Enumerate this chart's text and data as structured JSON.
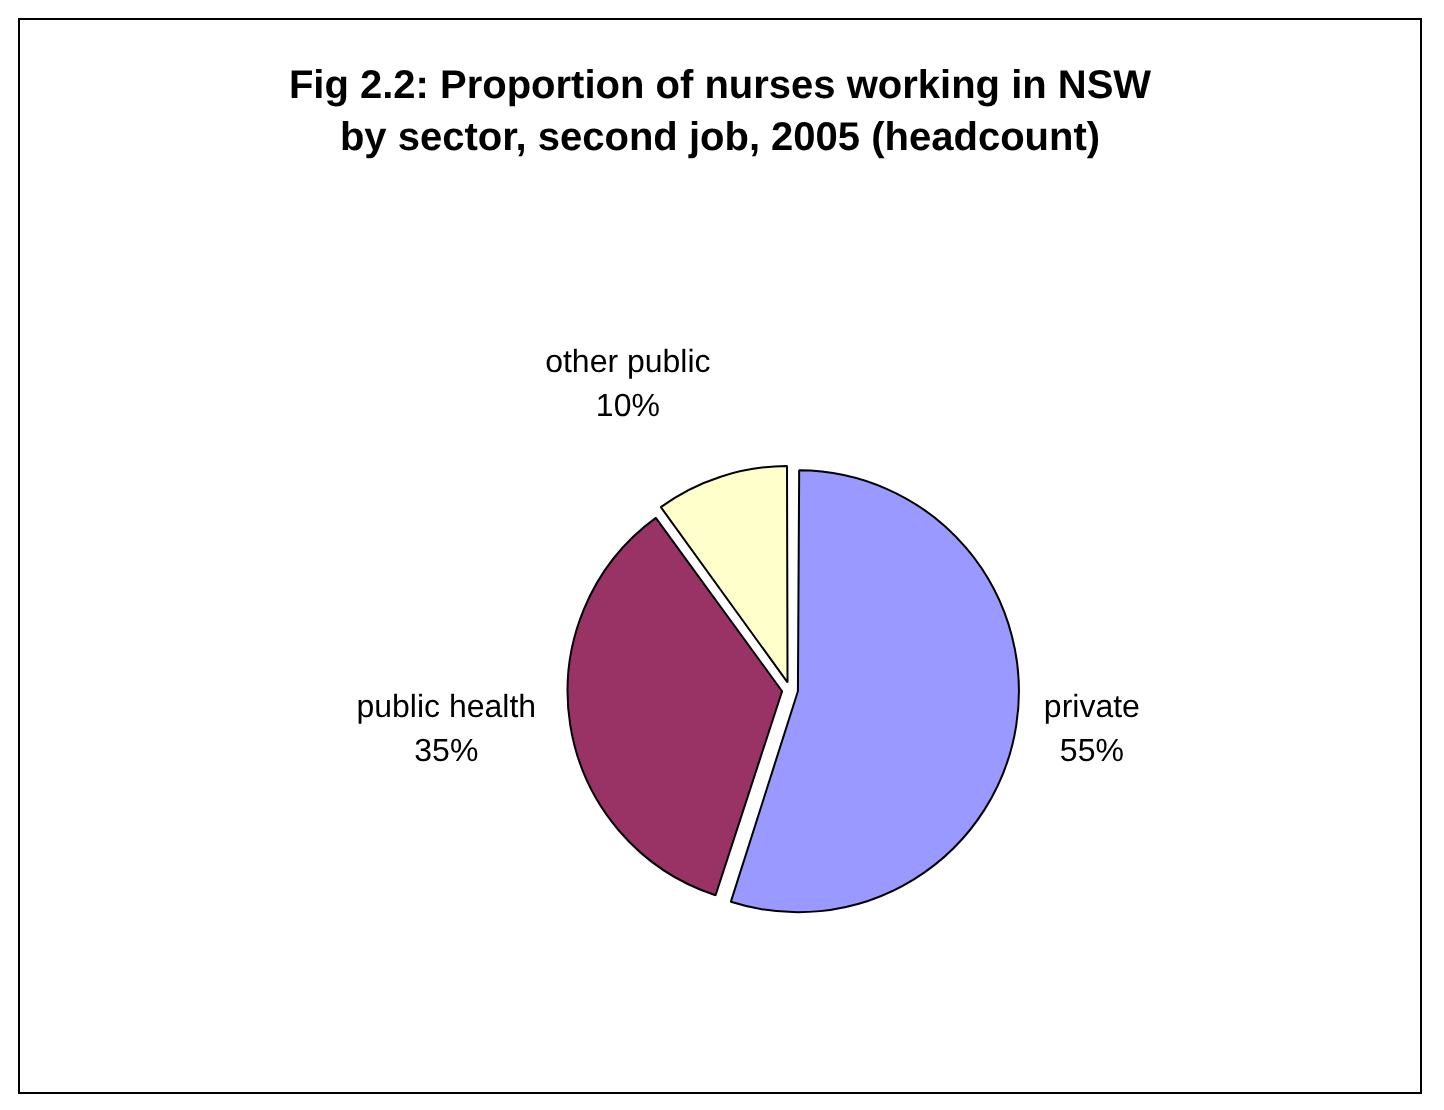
{
  "chart_data": {
    "type": "pie",
    "title": "Fig 2.2: Proportion of nurses working in NSW by sector, second job, 2005 (headcount)",
    "categories": [
      "private",
      "public health",
      "other public"
    ],
    "values": [
      55,
      35,
      10
    ],
    "colors": [
      "#9999ff",
      "#993366",
      "#ffffcc"
    ],
    "value_labels": [
      "55%",
      "35%",
      "10%"
    ],
    "legend": false
  }
}
